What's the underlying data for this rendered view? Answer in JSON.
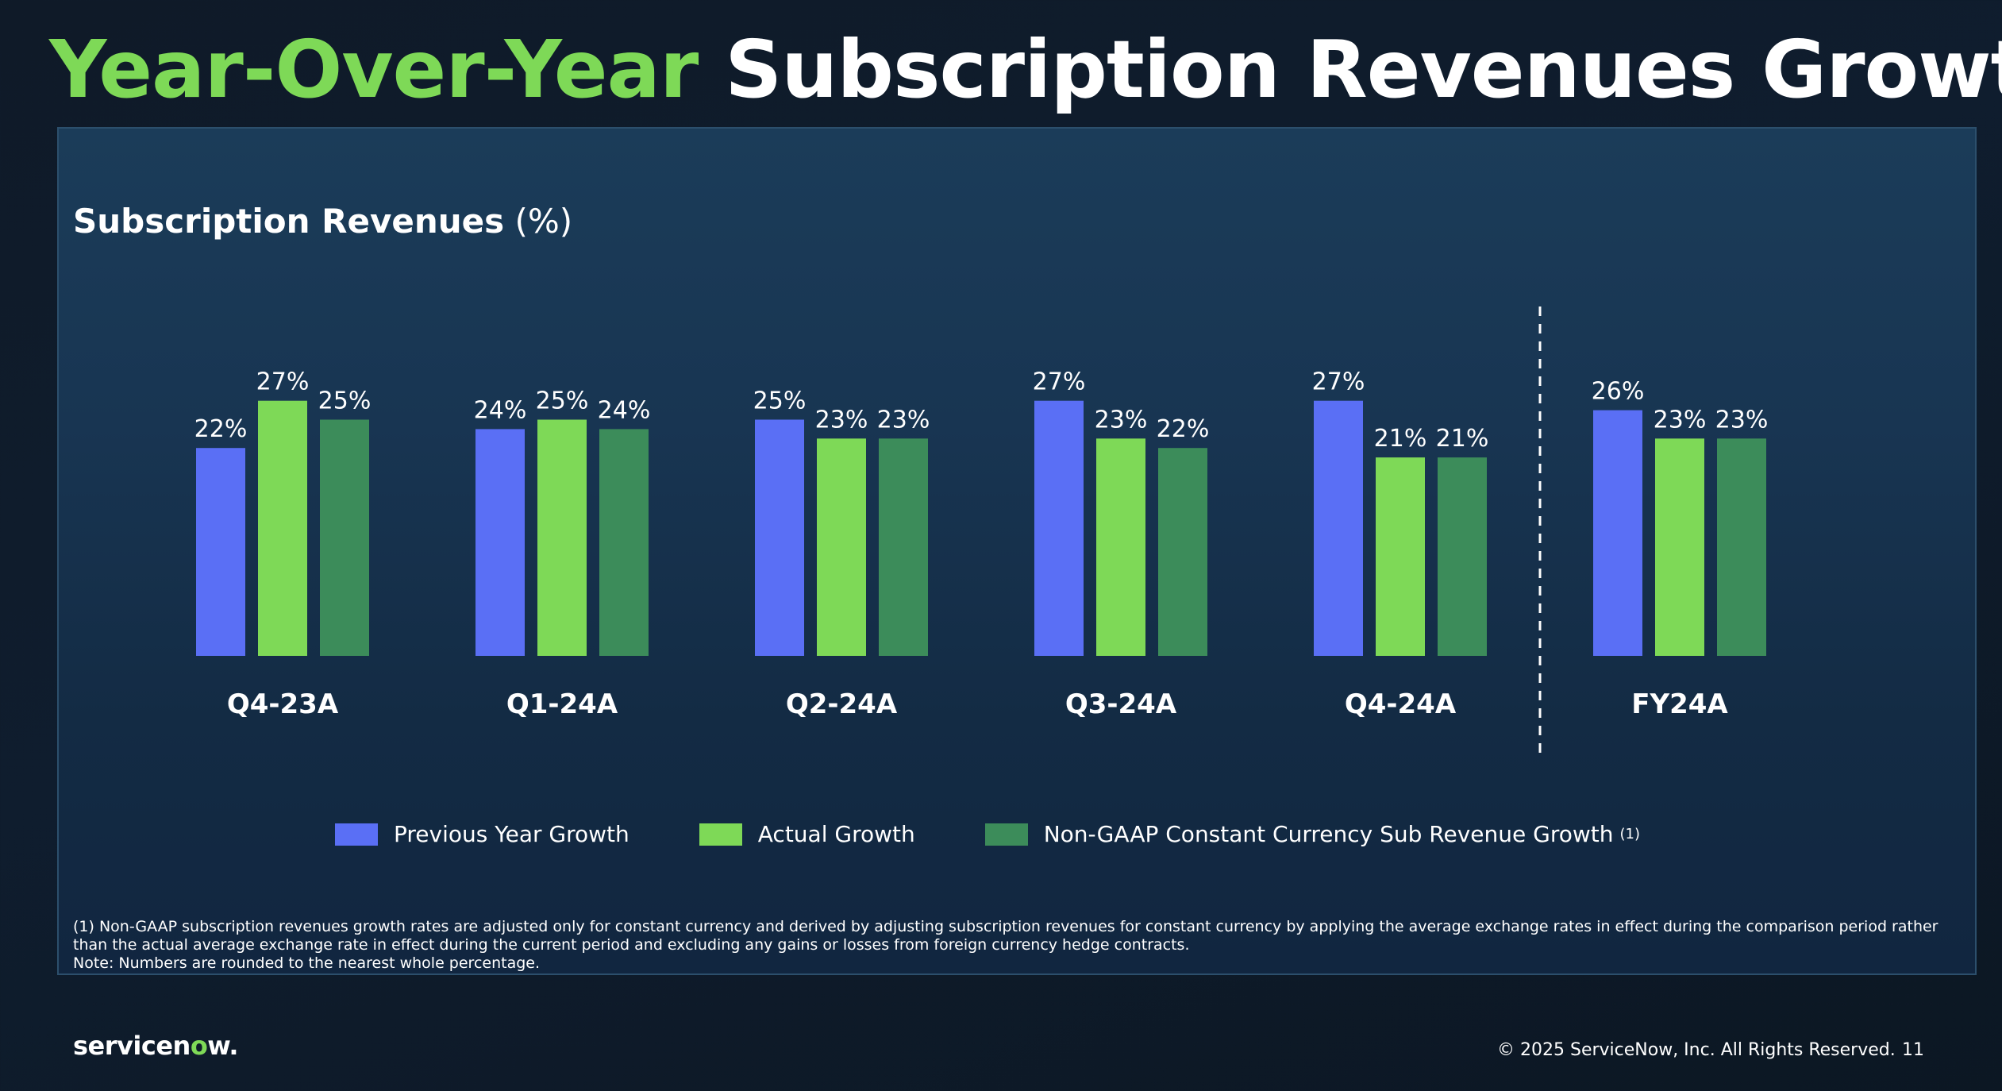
{
  "slide": {
    "title_highlight": "Year-Over-Year",
    "title_rest": "Subscription Revenues Growth",
    "logo_text_before": "servicen",
    "logo_text_accent": "o",
    "logo_text_after": "w",
    "logo_text_dot": ".",
    "copyright": "© 2025 ServiceNow, Inc. All Rights Reserved.",
    "page_number": "11"
  },
  "chart_title": {
    "strong": "Subscription Revenues",
    "unit": "(%)"
  },
  "footnotes": [
    "(1) Non-GAAP subscription revenues growth rates are adjusted only for constant currency and derived by adjusting subscription revenues for constant currency by applying the average exchange rates in effect during the comparison period rather than the actual average exchange rate in effect during the current period and excluding any gains or losses from foreign currency hedge contracts.",
    "Note: Numbers are rounded to the nearest whole percentage."
  ],
  "legend": {
    "superscript": "(1)"
  },
  "colors": {
    "previous_year": "#5a6ff5",
    "actual": "#7ed957",
    "non_gaap": "#3c8c5a",
    "title_accent": "#7ed957"
  },
  "chart_data": {
    "type": "bar",
    "categories": [
      "Q4-23A",
      "Q1-24A",
      "Q2-24A",
      "Q3-24A",
      "Q4-24A",
      "FY24A"
    ],
    "series": [
      {
        "name": "Previous Year Growth",
        "values": [
          22,
          24,
          25,
          27,
          27,
          26
        ],
        "color": "#5a6ff5"
      },
      {
        "name": "Actual Growth",
        "values": [
          27,
          25,
          23,
          23,
          21,
          23
        ],
        "color": "#7ed957"
      },
      {
        "name": "Non-GAAP Constant Currency Sub Revenue Growth",
        "values": [
          25,
          24,
          23,
          22,
          21,
          23
        ],
        "color": "#3c8c5a"
      }
    ],
    "value_labels": [
      [
        "22%",
        "24%",
        "25%",
        "27%",
        "27%",
        "26%"
      ],
      [
        "27%",
        "25%",
        "23%",
        "23%",
        "21%",
        "23%"
      ],
      [
        "25%",
        "24%",
        "23%",
        "22%",
        "21%",
        "23%"
      ]
    ],
    "divider_after_category": "Q4-24A",
    "legend_position": "bottom",
    "grid": false,
    "ylim": [
      0,
      27
    ]
  }
}
